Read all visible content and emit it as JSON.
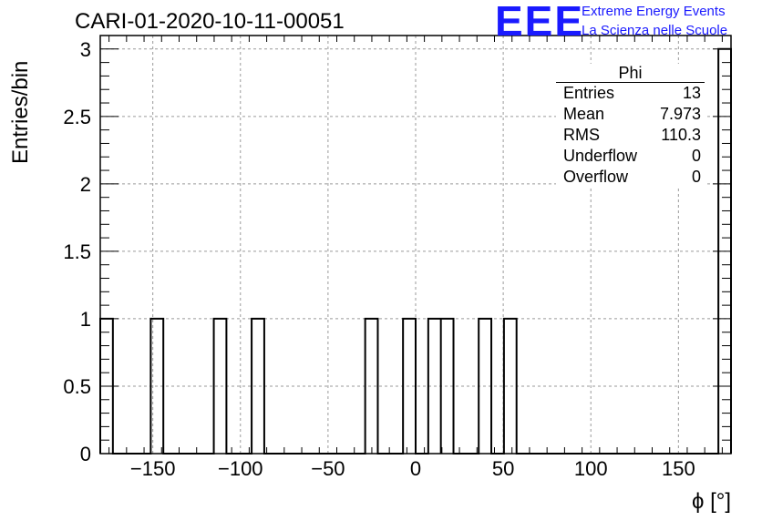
{
  "header": {
    "run_title": "CARI-01-2020-10-11-00051",
    "logo_text": "EEE",
    "brand_line1": "Extreme Energy Events",
    "brand_line2": "La Scienza nelle Scuole",
    "brand_color": "#1a1aff"
  },
  "stats_box": {
    "title": "Phi",
    "rows": [
      {
        "label": "Entries",
        "value": "13"
      },
      {
        "label": "Mean",
        "value": "7.973"
      },
      {
        "label": "RMS",
        "value": "110.3"
      },
      {
        "label": "Underflow",
        "value": "0"
      },
      {
        "label": "Overflow",
        "value": "0"
      }
    ]
  },
  "chart_data": {
    "type": "bar",
    "histogram": true,
    "xlabel": "ϕ [°]",
    "ylabel": "Entries/bin",
    "xlim": [
      -180,
      180
    ],
    "ylim": [
      0,
      3.1
    ],
    "grid": true,
    "bin_width": 7.2,
    "bins": [
      {
        "x0": -180.0,
        "x1": -172.8,
        "value": 1
      },
      {
        "x0": -151.2,
        "x1": -144.0,
        "value": 1
      },
      {
        "x0": -115.2,
        "x1": -108.0,
        "value": 1
      },
      {
        "x0": -93.6,
        "x1": -86.4,
        "value": 1
      },
      {
        "x0": -28.8,
        "x1": -21.6,
        "value": 1
      },
      {
        "x0": -7.2,
        "x1": 0.0,
        "value": 1
      },
      {
        "x0": 7.2,
        "x1": 14.4,
        "value": 1
      },
      {
        "x0": 14.4,
        "x1": 21.6,
        "value": 1
      },
      {
        "x0": 36.0,
        "x1": 43.2,
        "value": 1
      },
      {
        "x0": 50.4,
        "x1": 57.6,
        "value": 1
      },
      {
        "x0": 172.8,
        "x1": 180.0,
        "value": 3
      }
    ],
    "x_ticks": [
      {
        "value": -150,
        "label": "−150"
      },
      {
        "value": -100,
        "label": "−100"
      },
      {
        "value": -50,
        "label": "−50"
      },
      {
        "value": 0,
        "label": "0"
      },
      {
        "value": 50,
        "label": "50"
      },
      {
        "value": 100,
        "label": "100"
      },
      {
        "value": 150,
        "label": "150"
      }
    ],
    "y_ticks": [
      {
        "value": 0,
        "label": "0"
      },
      {
        "value": 0.5,
        "label": "0.5"
      },
      {
        "value": 1,
        "label": "1"
      },
      {
        "value": 1.5,
        "label": "1.5"
      },
      {
        "value": 2,
        "label": "2"
      },
      {
        "value": 2.5,
        "label": "2.5"
      },
      {
        "value": 3,
        "label": "3"
      }
    ]
  }
}
